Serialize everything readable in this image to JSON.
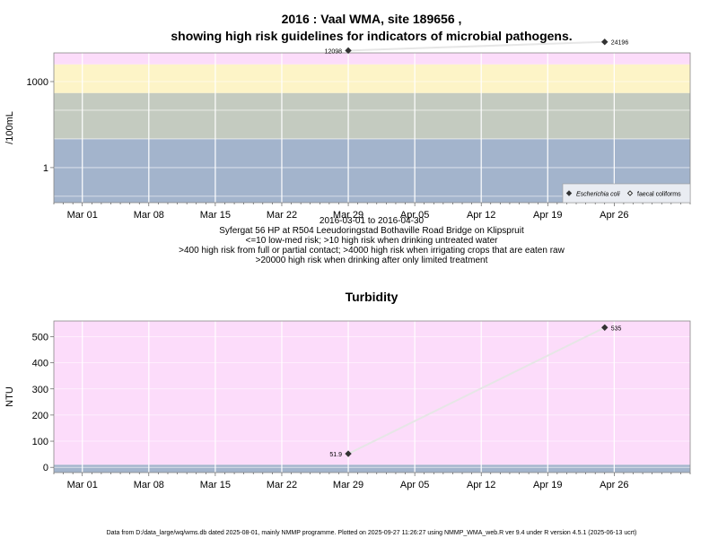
{
  "chart_data": [
    {
      "type": "line",
      "title": "2016 : Vaal WMA, site 189656 ,",
      "subtitle": "showing high risk guidelines for indicators of microbial pathogens.",
      "ylabel": "/100mL",
      "y_scale": "log",
      "ylim": [
        0.06,
        10000
      ],
      "y_ticks": [
        {
          "value": 1,
          "label": "1"
        },
        {
          "value": 1000,
          "label": "1000"
        }
      ],
      "x_ticks": [
        "Mar 01",
        "Mar 08",
        "Mar 15",
        "Mar 22",
        "Mar 29",
        "Apr 05",
        "Apr 12",
        "Apr 19",
        "Apr 26"
      ],
      "x_range": [
        "2016-02-27",
        "2016-05-04"
      ],
      "info_lines": [
        "2016-03-01 to 2016-04-30",
        "Syfergat 56 HP at R504 Leeudoringstad Bothaville Road Bridge on Klipspruit",
        "<=10 low-med risk; >10 high risk when drinking untreated water",
        ">400 high risk from full or partial contact; >4000 high risk when irrigating crops that are eaten raw",
        ">20000 high risk when drinking after only limited treatment"
      ],
      "bands": [
        {
          "from": 0.06,
          "to": 10,
          "color": "#a3b4cc"
        },
        {
          "from": 10,
          "to": 400,
          "color": "#c4cbc0"
        },
        {
          "from": 400,
          "to": 4000,
          "color": "#fdf4c7"
        },
        {
          "from": 4000,
          "to": 20000,
          "color": "#fcdcfa"
        },
        {
          "from": 20000,
          "to": 10000000,
          "color": "#f9b6c6"
        }
      ],
      "legend": {
        "position": "bottom-right",
        "items": [
          {
            "label": "Escherichia coli",
            "marker": "filled-diamond"
          },
          {
            "label": "faecal coliforms",
            "marker": "open-diamond"
          }
        ]
      },
      "series": [
        {
          "name": "Escherichia coli",
          "points": [
            {
              "x": "2016-03-29",
              "y": 12098,
              "label": "12098"
            },
            {
              "x": "2016-04-25",
              "y": 24196,
              "label": "24196"
            }
          ]
        }
      ]
    },
    {
      "type": "line",
      "title": "Turbidity",
      "ylabel": "NTU",
      "ylim": [
        -20,
        560
      ],
      "y_ticks": [
        {
          "value": 0,
          "label": "0"
        },
        {
          "value": 100,
          "label": "100"
        },
        {
          "value": 200,
          "label": "200"
        },
        {
          "value": 300,
          "label": "300"
        },
        {
          "value": 400,
          "label": "400"
        },
        {
          "value": 500,
          "label": "500"
        }
      ],
      "x_ticks": [
        "Mar 01",
        "Mar 08",
        "Mar 15",
        "Mar 22",
        "Mar 29",
        "Apr 05",
        "Apr 12",
        "Apr 19",
        "Apr 26"
      ],
      "x_range": [
        "2016-02-27",
        "2016-05-04"
      ],
      "bands": [
        {
          "from": -20,
          "to": 10,
          "color": "#a3b4cc"
        },
        {
          "from": 10,
          "to": 560,
          "color": "#fcdcfa"
        }
      ],
      "series": [
        {
          "name": "Turbidity",
          "points": [
            {
              "x": "2016-03-29",
              "y": 51.9,
              "label": "51.9"
            },
            {
              "x": "2016-04-25",
              "y": 535,
              "label": "535"
            }
          ]
        }
      ]
    }
  ],
  "footer": "Data from D:/data_large/wq/wms.db dated 2025-08-01, mainly NMMP programme. Plotted on 2025-09-27 11:26:27 using NMMP_WMA_web.R ver 9.4 under R version 4.5.1 (2025-06-13 ucrt)"
}
